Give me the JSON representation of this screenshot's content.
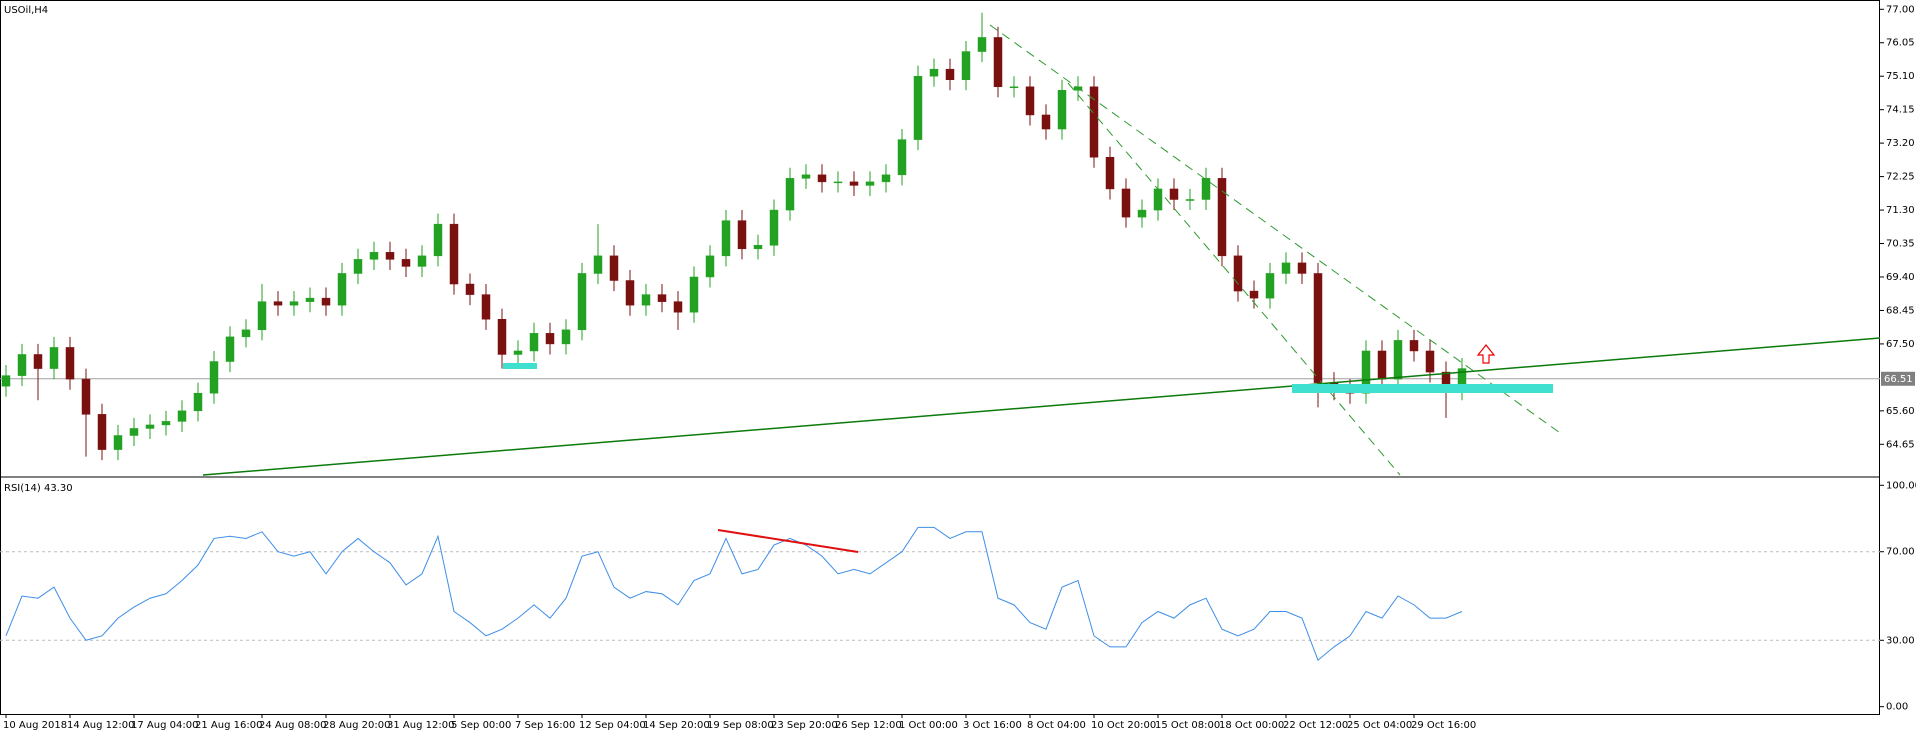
{
  "chart_data": [
    {
      "type": "candlestick",
      "title": "USOil,H4",
      "categories": [
        "10 Aug 2018",
        null,
        null,
        null,
        "14 Aug 12:00",
        null,
        null,
        null,
        "17 Aug 04:00",
        null,
        null,
        null,
        "21 Aug 16:00",
        null,
        null,
        null,
        "24 Aug 08:00",
        null,
        null,
        null,
        "28 Aug 20:00",
        null,
        null,
        null,
        "31 Aug 12:00",
        null,
        null,
        null,
        "5 Sep 00:00",
        null,
        null,
        null,
        "7 Sep 16:00",
        null,
        null,
        null,
        "12 Sep 04:00",
        null,
        null,
        null,
        "14 Sep 20:00",
        null,
        null,
        null,
        "19 Sep 08:00",
        null,
        null,
        null,
        "23 Sep 20:00",
        null,
        null,
        null,
        "26 Sep 12:00",
        null,
        null,
        null,
        "1 Oct 00:00",
        null,
        null,
        null,
        "3 Oct 16:00",
        null,
        null,
        null,
        "8 Oct 04:00",
        null,
        null,
        null,
        "10 Oct 20:00",
        null,
        null,
        null,
        "15 Oct 08:00",
        null,
        null,
        null,
        "18 Oct 00:00",
        null,
        null,
        null,
        "22 Oct 12:00",
        null,
        null,
        null,
        "25 Oct 04:00",
        null,
        null,
        null,
        "29 Oct 16:00",
        null,
        null,
        null
      ],
      "open": [
        66.3,
        66.6,
        67.2,
        66.8,
        67.4,
        66.5,
        65.5,
        64.5,
        64.9,
        65.1,
        65.2,
        65.3,
        65.6,
        66.1,
        67.0,
        67.7,
        67.9,
        68.7,
        68.6,
        68.7,
        68.8,
        68.6,
        69.5,
        69.9,
        70.1,
        69.9,
        69.7,
        70.0,
        70.9,
        69.2,
        68.9,
        68.2,
        67.2,
        67.3,
        67.8,
        67.5,
        67.9,
        69.5,
        70.0,
        69.3,
        68.6,
        68.9,
        68.7,
        68.4,
        69.4,
        70.0,
        71.0,
        70.2,
        70.3,
        71.3,
        72.2,
        72.3,
        72.1,
        72.1,
        72.0,
        72.1,
        72.3,
        73.3,
        75.1,
        75.3,
        75.0,
        75.8,
        76.2,
        74.8,
        74.8,
        74.0,
        73.6,
        74.7,
        74.8,
        72.8,
        71.9,
        71.1,
        71.3,
        71.9,
        71.6,
        71.6,
        72.2,
        70.0,
        69.0,
        68.8,
        69.5,
        69.8,
        69.5,
        66.4,
        66.2,
        66.1,
        67.3,
        66.5,
        67.6,
        67.3,
        66.7,
        66.2
      ],
      "high": [
        66.9,
        67.5,
        67.5,
        67.7,
        67.7,
        66.8,
        65.8,
        65.2,
        65.4,
        65.5,
        65.6,
        65.9,
        66.4,
        67.3,
        68.0,
        68.2,
        69.2,
        69.0,
        69.0,
        69.1,
        69.1,
        69.8,
        70.2,
        70.4,
        70.4,
        70.2,
        70.3,
        71.2,
        71.2,
        69.5,
        69.2,
        68.5,
        67.6,
        68.1,
        68.1,
        68.2,
        69.8,
        70.9,
        70.3,
        69.6,
        69.2,
        69.2,
        69.0,
        69.7,
        70.3,
        71.3,
        71.3,
        70.6,
        71.6,
        72.5,
        72.6,
        72.6,
        72.4,
        72.4,
        72.4,
        72.6,
        73.6,
        75.4,
        75.6,
        75.6,
        76.1,
        76.9,
        76.5,
        75.1,
        75.1,
        74.3,
        75.0,
        75.1,
        75.1,
        73.1,
        72.2,
        71.6,
        72.2,
        72.2,
        71.9,
        72.5,
        72.5,
        70.3,
        69.3,
        69.8,
        70.1,
        70.1,
        69.8,
        66.7,
        66.5,
        67.6,
        67.6,
        67.9,
        67.9,
        67.6,
        67.0,
        67.1
      ],
      "low": [
        66.0,
        66.3,
        65.9,
        66.5,
        66.2,
        64.3,
        64.2,
        64.2,
        64.6,
        64.8,
        64.9,
        65.0,
        65.3,
        65.8,
        66.7,
        67.4,
        67.6,
        68.3,
        68.3,
        68.4,
        68.3,
        68.3,
        69.2,
        69.6,
        69.6,
        69.4,
        69.4,
        69.7,
        68.9,
        68.6,
        67.9,
        66.8,
        66.9,
        67.0,
        67.2,
        67.2,
        67.6,
        69.2,
        69.0,
        68.3,
        68.3,
        68.4,
        67.9,
        68.1,
        69.1,
        69.7,
        69.9,
        69.9,
        70.0,
        71.0,
        71.9,
        71.8,
        71.8,
        71.7,
        71.7,
        71.8,
        72.0,
        73.0,
        74.8,
        74.7,
        74.7,
        75.5,
        74.5,
        74.5,
        73.7,
        73.3,
        73.3,
        74.4,
        72.5,
        71.6,
        70.8,
        70.8,
        71.0,
        71.3,
        71.3,
        71.3,
        69.7,
        68.7,
        68.5,
        68.5,
        69.2,
        69.2,
        65.7,
        65.9,
        65.8,
        65.8,
        66.2,
        66.2,
        67.0,
        66.4,
        65.4,
        65.9
      ],
      "close": [
        66.6,
        67.2,
        66.8,
        67.4,
        66.5,
        65.5,
        64.5,
        64.9,
        65.1,
        65.2,
        65.3,
        65.6,
        66.1,
        67.0,
        67.7,
        67.9,
        68.7,
        68.6,
        68.7,
        68.8,
        68.6,
        69.5,
        69.9,
        70.1,
        69.9,
        69.7,
        70.0,
        70.9,
        69.2,
        68.9,
        68.2,
        67.2,
        67.3,
        67.8,
        67.5,
        67.9,
        69.5,
        70.0,
        69.3,
        68.6,
        68.9,
        68.7,
        68.4,
        69.4,
        70.0,
        71.0,
        70.2,
        70.3,
        71.3,
        72.2,
        72.3,
        72.1,
        72.1,
        72.0,
        72.1,
        72.3,
        73.3,
        75.1,
        75.3,
        75.0,
        75.8,
        76.2,
        74.8,
        74.8,
        74.0,
        73.6,
        74.7,
        74.8,
        72.8,
        71.9,
        71.1,
        71.3,
        71.9,
        71.6,
        71.6,
        72.2,
        70.0,
        69.0,
        68.8,
        69.5,
        69.8,
        69.5,
        66.4,
        66.2,
        66.1,
        67.3,
        66.5,
        67.6,
        67.3,
        66.7,
        66.2,
        66.8
      ],
      "up_color": "#22a122",
      "down_color": "#7a1010",
      "last_price": 66.51,
      "ylim": [
        63.75,
        77.15
      ],
      "yticks": [
        {
          "value": 77,
          "label": "77.00"
        },
        76.05,
        {
          "value": 75.1,
          "label": "75.10"
        },
        74.15,
        {
          "value": 73.2,
          "label": "73.20"
        },
        72.25,
        {
          "value": 71.3,
          "label": "71.30"
        },
        70.35,
        {
          "value": 69.4,
          "label": "69.40"
        },
        68.45,
        {
          "value": 67.5,
          "label": "67.50"
        },
        {
          "value": 65.6,
          "label": "65.60"
        },
        64.65
      ]
    },
    {
      "type": "line",
      "title": "RSI(14) 43.30",
      "color": "#3d8ee8",
      "values": [
        32,
        50,
        49,
        54,
        40,
        30,
        32,
        40,
        45,
        49,
        51,
        57,
        64,
        76,
        77,
        76,
        79,
        70,
        68,
        70,
        60,
        70,
        76,
        70,
        65,
        55,
        60,
        77,
        43,
        38,
        32,
        35,
        40,
        46,
        40,
        49,
        68,
        70,
        54,
        49,
        52,
        51,
        46,
        57,
        60,
        76,
        60,
        62,
        73,
        76,
        73,
        68,
        60,
        62,
        60,
        65,
        70,
        81,
        81,
        76,
        79,
        79,
        49,
        46,
        38,
        35,
        54,
        57,
        32,
        27,
        27,
        38,
        43,
        40,
        46,
        49,
        35,
        32,
        35,
        43,
        43,
        40,
        21,
        27,
        32,
        43,
        40,
        50,
        46,
        40,
        40,
        43
      ],
      "ylim": [
        -3.3,
        103.3
      ],
      "yticks": [
        {
          "value": 100,
          "label": "100.00"
        },
        {
          "value": 70,
          "label": "70.00"
        },
        {
          "value": 30,
          "label": "30.00"
        },
        {
          "value": 0,
          "label": "0.00"
        }
      ]
    }
  ]
}
